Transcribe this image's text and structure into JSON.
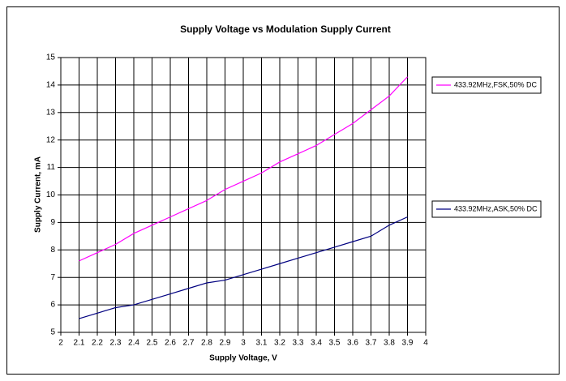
{
  "chart_data": {
    "type": "line",
    "title": "Supply Voltage vs Modulation Supply Current",
    "xlabel": "Supply Voltage, V",
    "ylabel": "Supply Current, mA",
    "x": [
      2.1,
      2.2,
      2.3,
      2.4,
      2.5,
      2.6,
      2.7,
      2.8,
      2.9,
      3,
      3.1,
      3.2,
      3.3,
      3.4,
      3.5,
      3.6,
      3.7,
      3.8,
      3.9
    ],
    "series": [
      {
        "name": "433.92MHz,FSK,50% DC",
        "color": "#ff00ff",
        "values": [
          7.6,
          7.9,
          8.2,
          8.6,
          8.9,
          9.2,
          9.5,
          9.8,
          10.2,
          10.5,
          10.8,
          11.2,
          11.5,
          11.8,
          12.2,
          12.6,
          13.1,
          13.6,
          14.3
        ]
      },
      {
        "name": "433.92MHz,ASK,50% DC",
        "color": "#000080",
        "values": [
          5.5,
          5.7,
          5.9,
          6.0,
          6.2,
          6.4,
          6.6,
          6.8,
          6.9,
          7.1,
          7.3,
          7.5,
          7.7,
          7.9,
          8.1,
          8.3,
          8.5,
          8.9,
          9.2
        ]
      }
    ],
    "xlim": [
      2,
      4
    ],
    "xticks": [
      2,
      2.1,
      2.2,
      2.3,
      2.4,
      2.5,
      2.6,
      2.7,
      2.8,
      2.9,
      3,
      3.1,
      3.2,
      3.3,
      3.4,
      3.5,
      3.6,
      3.7,
      3.8,
      3.9,
      4
    ],
    "ylim": [
      5,
      15
    ],
    "yticks": [
      5,
      6,
      7,
      8,
      9,
      10,
      11,
      12,
      13,
      14,
      15
    ],
    "grid": true
  }
}
